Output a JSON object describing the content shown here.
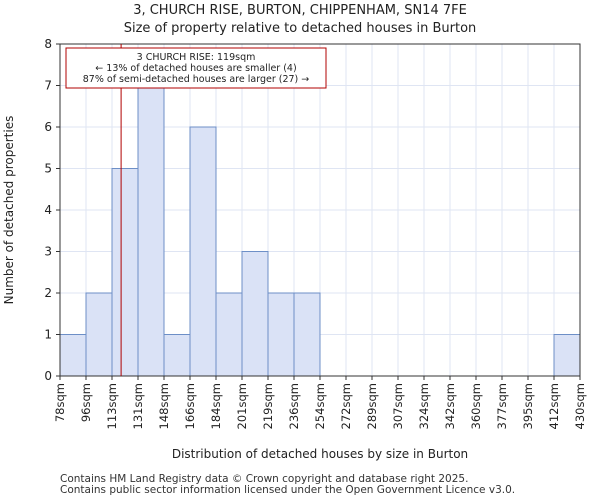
{
  "chart_data": {
    "type": "histogram",
    "title": "3, CHURCH RISE, BURTON, CHIPPENHAM, SN14 7FE",
    "subtitle": "Size of property relative to detached houses in Burton",
    "xlabel": "Distribution of detached houses by size in Burton",
    "ylabel": "Number of detached properties",
    "categories": [
      "78sqm",
      "96sqm",
      "113sqm",
      "131sqm",
      "148sqm",
      "166sqm",
      "184sqm",
      "201sqm",
      "219sqm",
      "236sqm",
      "254sqm",
      "272sqm",
      "289sqm",
      "307sqm",
      "324sqm",
      "342sqm",
      "360sqm",
      "377sqm",
      "395sqm",
      "412sqm",
      "430sqm"
    ],
    "values": [
      1,
      2,
      5,
      7,
      1,
      6,
      2,
      3,
      2,
      2,
      0,
      0,
      0,
      0,
      0,
      0,
      0,
      0,
      0,
      1
    ],
    "ylim": [
      0,
      8
    ],
    "yticks": [
      0,
      1,
      2,
      3,
      4,
      5,
      6,
      7,
      8
    ],
    "grid": true,
    "property_marker": {
      "bin_position": 2.35,
      "annotation_lines": [
        "3 CHURCH RISE: 119sqm",
        "← 13% of detached houses are smaller (4)",
        "87% of semi-detached houses are larger (27) →"
      ]
    },
    "colors": {
      "bar_fill": "#dae2f6",
      "bar_edge": "#6d8fc7",
      "marker": "#b00000",
      "grid": "#dfe5f3"
    }
  },
  "footer": {
    "line1": "Contains HM Land Registry data © Crown copyright and database right 2025.",
    "line2": "Contains public sector information licensed under the Open Government Licence v3.0."
  }
}
